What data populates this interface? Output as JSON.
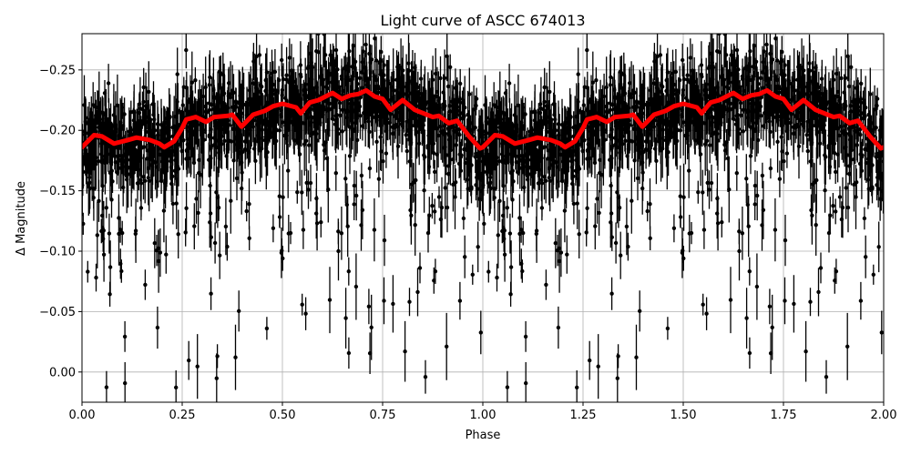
{
  "chart_data": {
    "type": "scatter",
    "title": "Light curve of ASCC 674013",
    "xlabel": "Phase",
    "ylabel": "Δ Magnitude",
    "xlim": [
      0.0,
      2.0
    ],
    "ylim": [
      0.025,
      -0.28
    ],
    "y_inverted": true,
    "grid": true,
    "legend": null,
    "x_ticks": [
      0.0,
      0.25,
      0.5,
      0.75,
      1.0,
      1.25,
      1.5,
      1.75,
      2.0
    ],
    "x_tick_labels": [
      "0.00",
      "0.25",
      "0.50",
      "0.75",
      "1.00",
      "1.25",
      "1.50",
      "1.75",
      "2.00"
    ],
    "y_ticks": [
      -0.25,
      -0.2,
      -0.15,
      -0.1,
      -0.05,
      0.0
    ],
    "y_tick_labels": [
      "−0.25",
      "−0.20",
      "−0.15",
      "−0.10",
      "−0.05",
      "0.00"
    ],
    "series": [
      {
        "name": "observations",
        "kind": "errorbar-scatter",
        "color": "#000000",
        "description": "Dense black points with vertical error bars, phase-folded and repeated over two cycles; core band roughly -0.15 to -0.26 mag, sparse scatter down to ~+0.02 mag.",
        "core_band": {
          "upper": -0.255,
          "lower": -0.155
        }
      },
      {
        "name": "binned mean",
        "kind": "line",
        "color": "#ff0000",
        "linewidth": 5,
        "period_repeat": 2,
        "x": [
          0.0,
          0.03,
          0.05,
          0.08,
          0.114,
          0.136,
          0.17,
          0.193,
          0.205,
          0.23,
          0.25,
          0.26,
          0.284,
          0.309,
          0.33,
          0.364,
          0.375,
          0.398,
          0.427,
          0.455,
          0.477,
          0.5,
          0.534,
          0.546,
          0.568,
          0.59,
          0.625,
          0.648,
          0.67,
          0.689,
          0.709,
          0.73,
          0.75,
          0.77,
          0.8,
          0.83,
          0.852,
          0.875,
          0.89,
          0.915,
          0.936,
          0.966,
          0.993,
          1.0
        ],
        "y": [
          -0.186,
          -0.196,
          -0.195,
          -0.189,
          -0.192,
          -0.194,
          -0.192,
          -0.189,
          -0.186,
          -0.191,
          -0.202,
          -0.209,
          -0.211,
          -0.207,
          -0.211,
          -0.212,
          -0.213,
          -0.203,
          -0.213,
          -0.216,
          -0.22,
          -0.222,
          -0.219,
          -0.214,
          -0.223,
          -0.225,
          -0.231,
          -0.226,
          -0.229,
          -0.23,
          -0.233,
          -0.228,
          -0.226,
          -0.217,
          -0.225,
          -0.217,
          -0.214,
          -0.211,
          -0.212,
          -0.206,
          -0.208,
          -0.195,
          -0.185,
          -0.186
        ]
      }
    ]
  },
  "colors": {
    "grid": "#b0b0b0",
    "points": "#000000",
    "curve": "#ff0000",
    "axes": "#000000"
  }
}
